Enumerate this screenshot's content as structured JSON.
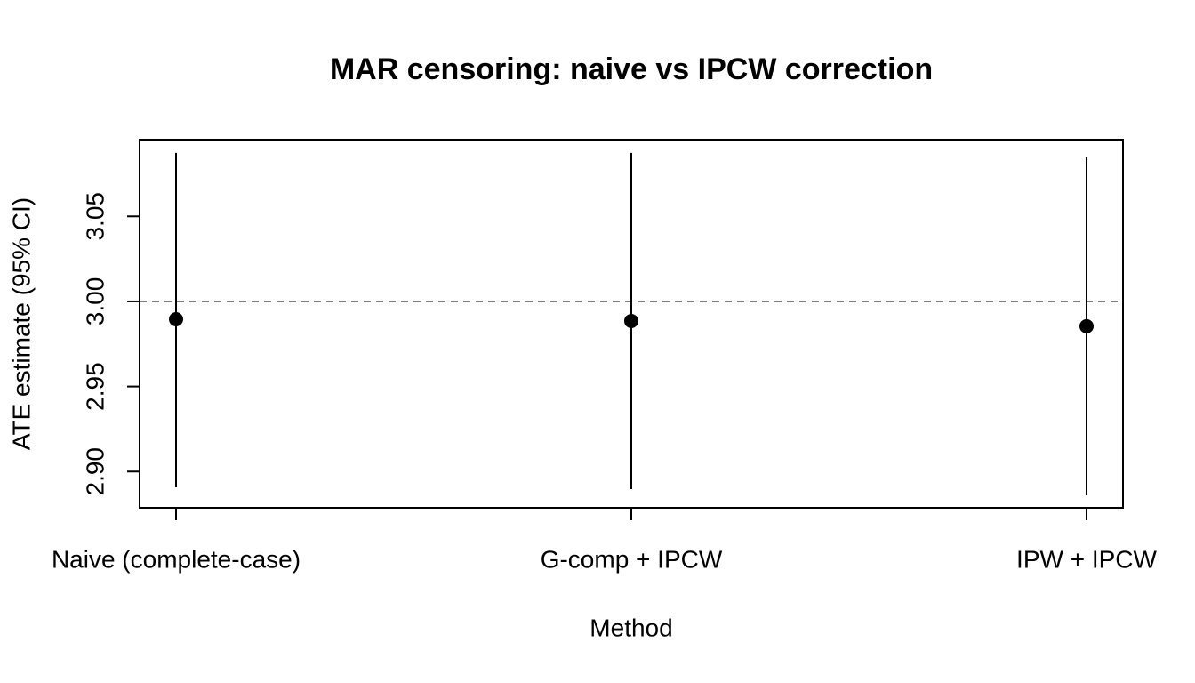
{
  "chart_data": {
    "type": "errorbar",
    "title": "MAR censoring: naive vs IPCW correction",
    "x_label": "Method",
    "y_label": "ATE estimate (95% CI)",
    "categories": [
      "Naive (complete-case)",
      "G-comp + IPCW",
      "IPW + IPCW"
    ],
    "values": [
      2.9895,
      2.9885,
      2.9854
    ],
    "ci_lower": [
      2.8907,
      2.8897,
      2.886
    ],
    "ci_upper": [
      3.0873,
      3.0873,
      3.0847
    ],
    "color": "#000000",
    "reference_line": 3.0,
    "ylim": [
      2.8787,
      3.0951
    ],
    "yticks": [
      {
        "value": 2.9,
        "label": "2.90"
      },
      2.95,
      {
        "value": 3.0,
        "label": "3.00"
      },
      3.05
    ]
  }
}
